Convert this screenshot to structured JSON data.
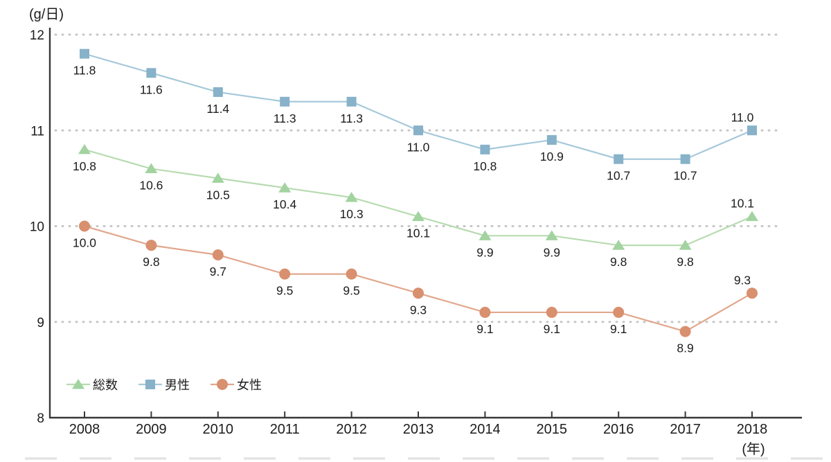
{
  "unit_label": "(g/日)",
  "x_axis_unit_label": "(年)",
  "colors": {
    "background": "#ffffff",
    "grid_dots": "#c6c6c6",
    "axis": "#383838",
    "text": "#1c1c1c",
    "bottom_faint_line": "#e4e4e4"
  },
  "legend": {
    "position": "bottom-left",
    "items": [
      {
        "label": "総数",
        "marker": "triangle"
      },
      {
        "label": "男性",
        "marker": "square"
      },
      {
        "label": "女性",
        "marker": "circle"
      }
    ]
  },
  "chart_data": {
    "type": "line",
    "title": "",
    "xlabel": "(年)",
    "ylabel": "(g/日)",
    "x": [
      2008,
      2009,
      2010,
      2011,
      2012,
      2013,
      2014,
      2015,
      2016,
      2017,
      2018
    ],
    "ylim": [
      8,
      12
    ],
    "yticks": [
      8,
      9,
      10,
      11,
      12
    ],
    "grid": "horizontal-dotted",
    "legend_position": "bottom-left",
    "value_labels": "all points, one decimal, below points except last year above",
    "series": [
      {
        "name": "総数",
        "marker": "triangle",
        "marker_color": "#a2d3a0",
        "line_color": "#b7dbb0",
        "values": [
          10.8,
          10.6,
          10.5,
          10.4,
          10.3,
          10.1,
          9.9,
          9.9,
          9.8,
          9.8,
          10.1
        ]
      },
      {
        "name": "男性",
        "marker": "square",
        "marker_color": "#87b2c9",
        "line_color": "#a6c9da",
        "values": [
          11.8,
          11.6,
          11.4,
          11.3,
          11.3,
          11.0,
          10.8,
          10.9,
          10.7,
          10.7,
          11.0
        ]
      },
      {
        "name": "女性",
        "marker": "circle",
        "marker_color": "#d8906e",
        "line_color": "#e1a78d",
        "values": [
          10.0,
          9.8,
          9.7,
          9.5,
          9.5,
          9.3,
          9.1,
          9.1,
          9.1,
          8.9,
          9.3
        ]
      }
    ]
  }
}
